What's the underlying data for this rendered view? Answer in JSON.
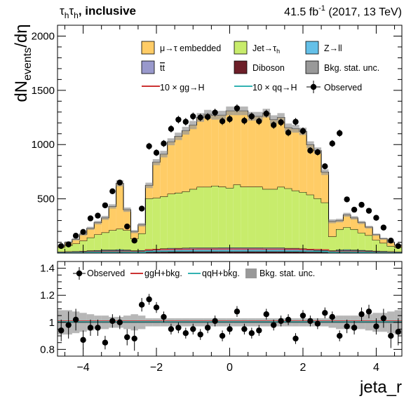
{
  "header": {
    "channel": "τ",
    "channel_sub_1": "h",
    "channel_2": "τ",
    "channel_sub_2": "h",
    "category": ", inclusive",
    "lumi_value": "41.5 fb",
    "lumi_exp": "-1",
    "lumi_info": " (2017, 13 TeV)"
  },
  "legend_top": [
    {
      "key": "embedded",
      "label": "μ→τ embedded",
      "color": "#ffcc66",
      "kind": "box"
    },
    {
      "key": "jetfake",
      "label": "Jet→τ",
      "label_sub": "h",
      "color": "#c8ec6c",
      "kind": "box"
    },
    {
      "key": "zll",
      "label": "Z→ll",
      "color": "#64c0e8",
      "kind": "box"
    },
    {
      "key": "ttbar",
      "label": "tt",
      "label_overline": true,
      "color": "#9999cc",
      "kind": "box"
    },
    {
      "key": "diboson",
      "label": "Diboson",
      "color": "#6d1f29",
      "kind": "box"
    },
    {
      "key": "bkgunc",
      "label": "Bkg. stat. unc.",
      "color": "#999999",
      "kind": "box"
    },
    {
      "key": "ggh",
      "label": "10 × gg→H",
      "color": "#cc3333",
      "kind": "line"
    },
    {
      "key": "qqh",
      "label": "10 × qq→H",
      "color": "#33b2b2",
      "kind": "line"
    },
    {
      "key": "obs",
      "label": "Observed",
      "color": "#000000",
      "kind": "marker"
    }
  ],
  "legend_ratio": [
    {
      "key": "obs",
      "label": "Observed",
      "color": "#000000",
      "kind": "marker"
    },
    {
      "key": "ggh",
      "label": "ggH+bkg.",
      "color": "#cc3333",
      "kind": "line"
    },
    {
      "key": "qqh",
      "label": "qqH+bkg.",
      "color": "#33b2b2",
      "kind": "line"
    },
    {
      "key": "unc",
      "label": "Bkg. stat. unc.",
      "color": "#999999",
      "kind": "box"
    }
  ],
  "chart_data": [
    {
      "type": "bar",
      "stacked": true,
      "ylabel": "dN",
      "ylabel_sub": "events",
      "ylabel_tail": "/dη",
      "xlim": [
        -4.7,
        4.7
      ],
      "ylim": [
        0,
        2100
      ],
      "yticks": [
        500,
        1000,
        1500,
        2000
      ],
      "n_bins": 47,
      "bin_width": 0.2,
      "series": [
        {
          "name": "Diboson",
          "values": [
            4,
            5,
            5,
            6,
            7,
            8,
            9,
            9,
            10,
            9,
            7,
            8,
            10,
            11,
            12,
            13,
            13,
            13,
            14,
            14,
            14,
            14,
            14,
            14,
            14,
            14,
            14,
            14,
            14,
            14,
            14,
            13,
            13,
            12,
            11,
            10,
            8,
            7,
            9,
            10,
            9,
            9,
            8,
            7,
            6,
            5,
            4
          ]
        },
        {
          "name": "tt",
          "values": [
            6,
            7,
            8,
            9,
            11,
            12,
            14,
            14,
            15,
            14,
            11,
            12,
            16,
            18,
            20,
            22,
            22,
            23,
            24,
            24,
            24,
            24,
            25,
            25,
            25,
            25,
            25,
            25,
            24,
            24,
            24,
            22,
            22,
            20,
            18,
            16,
            12,
            11,
            14,
            15,
            14,
            12,
            11,
            9,
            8,
            7,
            6
          ]
        },
        {
          "name": "Z→ll",
          "values": [
            3,
            3,
            4,
            4,
            5,
            6,
            7,
            7,
            8,
            7,
            5,
            6,
            8,
            9,
            10,
            11,
            11,
            12,
            12,
            12,
            12,
            12,
            12,
            12,
            12,
            12,
            12,
            12,
            12,
            12,
            12,
            11,
            11,
            10,
            9,
            8,
            6,
            5,
            7,
            8,
            7,
            6,
            5,
            4,
            4,
            3,
            3
          ]
        },
        {
          "name": "Jet→τh",
          "values": [
            40,
            55,
            70,
            95,
            120,
            145,
            160,
            180,
            190,
            180,
            110,
            155,
            470,
            470,
            480,
            500,
            510,
            520,
            540,
            560,
            560,
            570,
            560,
            550,
            580,
            560,
            560,
            560,
            540,
            540,
            560,
            550,
            530,
            520,
            500,
            470,
            440,
            130,
            190,
            205,
            190,
            160,
            140,
            100,
            75,
            50,
            40
          ]
        },
        {
          "name": "μ→τ embedded",
          "values": [
            12,
            30,
            40,
            60,
            85,
            110,
            135,
            220,
            420,
            190,
            65,
            80,
            120,
            330,
            390,
            480,
            520,
            560,
            590,
            640,
            670,
            650,
            660,
            710,
            680,
            700,
            650,
            650,
            700,
            640,
            640,
            560,
            570,
            560,
            460,
            440,
            280,
            140,
            80,
            115,
            105,
            95,
            75,
            50,
            40,
            35,
            20
          ]
        }
      ],
      "unc": [
        6,
        8,
        10,
        12,
        14,
        16,
        18,
        20,
        28,
        20,
        14,
        16,
        25,
        28,
        30,
        32,
        34,
        36,
        38,
        40,
        40,
        40,
        40,
        40,
        40,
        40,
        40,
        40,
        40,
        40,
        40,
        38,
        36,
        34,
        32,
        30,
        26,
        18,
        16,
        18,
        16,
        14,
        12,
        10,
        9,
        8,
        6
      ],
      "signal": [
        {
          "name": "10 × gg→H",
          "values": [
            6,
            7,
            8,
            10,
            11,
            13,
            15,
            15,
            16,
            15,
            12,
            13,
            30,
            32,
            33,
            35,
            36,
            36,
            37,
            38,
            38,
            38,
            38,
            38,
            38,
            38,
            38,
            38,
            37,
            37,
            37,
            36,
            36,
            35,
            33,
            32,
            30,
            12,
            15,
            16,
            15,
            13,
            11,
            10,
            8,
            7,
            6
          ]
        },
        {
          "name": "10 × qq→H",
          "values": [
            3,
            4,
            5,
            6,
            7,
            8,
            9,
            9,
            10,
            9,
            7,
            8,
            14,
            16,
            17,
            18,
            18,
            19,
            19,
            19,
            19,
            19,
            19,
            19,
            19,
            19,
            19,
            19,
            19,
            19,
            19,
            18,
            18,
            18,
            17,
            16,
            14,
            8,
            9,
            10,
            9,
            8,
            7,
            6,
            5,
            4,
            3
          ]
        }
      ],
      "observed": [
        65,
        80,
        160,
        195,
        320,
        345,
        440,
        570,
        650,
        245,
        115,
        410,
        985,
        925,
        1010,
        1145,
        1230,
        1210,
        1260,
        1250,
        1255,
        1295,
        1215,
        1235,
        1335,
        1220,
        1260,
        1215,
        1285,
        1180,
        1205,
        1110,
        1210,
        1125,
        945,
        930,
        800,
        1010,
        1105,
        495,
        400,
        445,
        390,
        325,
        235,
        115,
        65
      ]
    },
    {
      "type": "scatter",
      "ylim": [
        0.75,
        1.45
      ],
      "yticks": [
        0.8,
        1.0,
        1.2,
        1.4
      ],
      "xticks": [
        -4,
        -2,
        0,
        2,
        4
      ],
      "xlabel": "jeta_r",
      "ratio": [
        0.94,
        0.98,
        1.02,
        0.87,
        0.96,
        0.96,
        0.85,
        1.01,
        1.0,
        0.89,
        0.88,
        1.13,
        1.17,
        1.11,
        1.04,
        0.95,
        0.96,
        0.92,
        0.95,
        0.91,
        0.96,
        1.01,
        0.9,
        0.95,
        1.08,
        0.95,
        0.92,
        0.94,
        1.06,
        0.98,
        1.01,
        1.02,
        0.88,
        1.05,
        1.01,
        0.99,
        1.07,
        1.04,
        0.9,
        0.97,
        0.96,
        1.06,
        1.08,
        0.97,
        1.03,
        0.9,
        0.93
      ],
      "ratio_err": [
        0.08,
        0.1,
        0.08,
        0.07,
        0.06,
        0.06,
        0.05,
        0.05,
        0.05,
        0.06,
        0.09,
        0.05,
        0.04,
        0.04,
        0.04,
        0.04,
        0.04,
        0.04,
        0.04,
        0.04,
        0.04,
        0.04,
        0.04,
        0.04,
        0.04,
        0.04,
        0.04,
        0.04,
        0.04,
        0.04,
        0.04,
        0.04,
        0.04,
        0.04,
        0.04,
        0.04,
        0.04,
        0.04,
        0.04,
        0.05,
        0.05,
        0.05,
        0.05,
        0.06,
        0.07,
        0.09,
        0.1
      ],
      "unc_rel": [
        0.09,
        0.09,
        0.08,
        0.07,
        0.06,
        0.05,
        0.05,
        0.04,
        0.04,
        0.05,
        0.06,
        0.05,
        0.03,
        0.03,
        0.03,
        0.03,
        0.03,
        0.03,
        0.03,
        0.03,
        0.03,
        0.03,
        0.03,
        0.03,
        0.03,
        0.03,
        0.03,
        0.03,
        0.03,
        0.03,
        0.03,
        0.03,
        0.03,
        0.03,
        0.03,
        0.03,
        0.03,
        0.04,
        0.05,
        0.05,
        0.05,
        0.05,
        0.06,
        0.07,
        0.07,
        0.08,
        0.09
      ],
      "ggh_ratio": 1.01,
      "qqh_ratio": 1.005
    }
  ]
}
